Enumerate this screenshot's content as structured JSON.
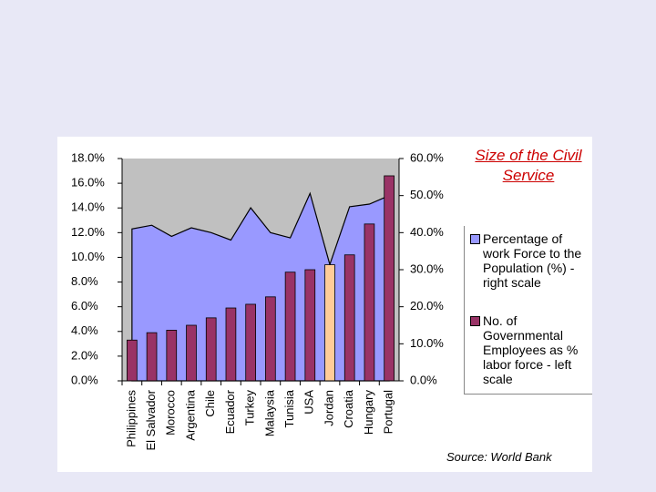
{
  "chart_data": {
    "type": "combo",
    "title": "Size of the Civil Service",
    "source": "Source: World Bank",
    "categories": [
      "Philippines",
      "El Salvador",
      "Morocco",
      "Argentina",
      "Chile",
      "Ecuador",
      "Turkey",
      "Malaysia",
      "Tunisia",
      "USA",
      "Jordan",
      "Croatia",
      "Hungary",
      "Portugal"
    ],
    "series": [
      {
        "name": "Percentage of work Force to the Population (%) - right scale",
        "type": "area",
        "axis": "y2",
        "color": "#9999ff",
        "values": [
          41,
          42,
          39,
          41.3,
          40,
          38,
          46.7,
          40,
          38.6,
          50.6,
          31.4,
          47,
          47.7,
          50
        ]
      },
      {
        "name": "No. of Governmental Employees as % labor force - left scale",
        "type": "bar",
        "color": "#993366",
        "bar_colors": [
          "#993366",
          "#993366",
          "#993366",
          "#993366",
          "#993366",
          "#993366",
          "#993366",
          "#993366",
          "#993366",
          "#993366",
          "#ffcc99",
          "#993366",
          "#993366",
          "#993366"
        ],
        "values": [
          3.3,
          3.9,
          4.1,
          4.5,
          5.1,
          5.9,
          6.2,
          6.8,
          8.8,
          9.0,
          9.4,
          10.2,
          12.7,
          16.6
        ]
      }
    ],
    "ylim": [
      0,
      18
    ],
    "yticks": [
      {
        "value": 0,
        "label": "0.0%"
      },
      {
        "value": 2,
        "label": "2.0%"
      },
      {
        "value": 4,
        "label": "4.0%"
      },
      {
        "value": 6,
        "label": "6.0%"
      },
      {
        "value": 8,
        "label": "8.0%"
      },
      {
        "value": 10,
        "label": "10.0%"
      },
      {
        "value": 12,
        "label": "12.0%"
      },
      {
        "value": 14,
        "label": "14.0%"
      },
      {
        "value": 16,
        "label": "16.0%"
      },
      {
        "value": 18,
        "label": "18.0%"
      }
    ],
    "y2lim": [
      0,
      60
    ],
    "y2ticks": [
      {
        "value": 0,
        "label": "0.0%"
      },
      {
        "value": 10,
        "label": "10.0%"
      },
      {
        "value": 20,
        "label": "20.0%"
      },
      {
        "value": 30,
        "label": "30.0%"
      },
      {
        "value": 40,
        "label": "40.0%"
      },
      {
        "value": 50,
        "label": "50.0%"
      },
      {
        "value": 60,
        "label": "60.0%"
      }
    ],
    "plot_background": "#c0c0c0"
  }
}
